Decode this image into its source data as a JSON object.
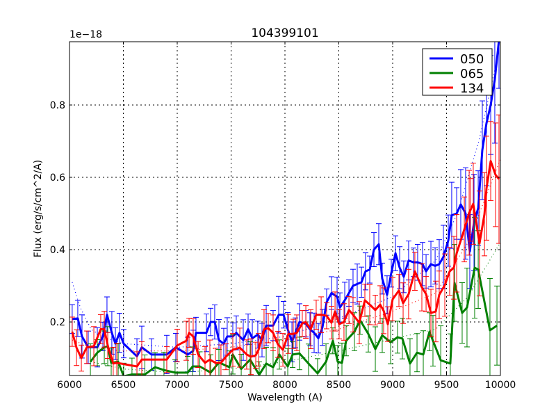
{
  "chart_data": {
    "type": "line",
    "title": "104399101",
    "xlabel": "Wavelength (A)",
    "ylabel": "Flux (erg/s/cm^2/A)",
    "y_offset_text": "1e−18",
    "xlim": [
      6000,
      10000
    ],
    "ylim": [
      0.052,
      0.975
    ],
    "xticks": [
      6000,
      6500,
      7000,
      7500,
      8000,
      8500,
      9000,
      9500,
      10000
    ],
    "xtick_labels": [
      "6000",
      "6500",
      "7000",
      "7500",
      "8000",
      "8500",
      "9000",
      "9500",
      "10000"
    ],
    "yticks": [
      0.2,
      0.4,
      0.6,
      0.8
    ],
    "ytick_labels": [
      "0.2",
      "0.4",
      "0.6",
      "0.8"
    ],
    "grid": true,
    "legend_position": "top-right",
    "series": [
      {
        "name": "050",
        "color": "#0000ff",
        "x": [
          6025,
          6077,
          6116,
          6174,
          6258,
          6310,
          6348,
          6393,
          6426,
          6464,
          6503,
          6626,
          6671,
          6761,
          6903,
          6987,
          7097,
          7148,
          7174,
          7271,
          7310,
          7348,
          7387,
          7432,
          7464,
          7516,
          7548,
          7613,
          7658,
          7697,
          7748,
          7787,
          7826,
          7890,
          7942,
          7987,
          8026,
          8065,
          8097,
          8135,
          8194,
          8232,
          8271,
          8310,
          8348,
          8387,
          8432,
          8484,
          8510,
          8555,
          8594,
          8632,
          8671,
          8710,
          8748,
          8787,
          8826,
          8871,
          8903,
          8948,
          8987,
          9026,
          9065,
          9103,
          9148,
          9194,
          9232,
          9277,
          9310,
          9355,
          9394,
          9432,
          9471,
          9516,
          9548,
          9594,
          9632,
          9677,
          9716,
          9755,
          9794,
          9832,
          9871,
          9910,
          9948,
          9987
        ],
        "y": [
          0.208,
          0.21,
          0.16,
          0.13,
          0.13,
          0.16,
          0.22,
          0.17,
          0.14,
          0.17,
          0.14,
          0.105,
          0.13,
          0.11,
          0.11,
          0.13,
          0.11,
          0.12,
          0.17,
          0.17,
          0.2,
          0.2,
          0.15,
          0.14,
          0.16,
          0.16,
          0.17,
          0.15,
          0.18,
          0.155,
          0.165,
          0.15,
          0.19,
          0.19,
          0.22,
          0.22,
          0.18,
          0.145,
          0.17,
          0.2,
          0.195,
          0.18,
          0.17,
          0.155,
          0.185,
          0.255,
          0.28,
          0.27,
          0.24,
          0.26,
          0.28,
          0.3,
          0.305,
          0.31,
          0.34,
          0.345,
          0.4,
          0.415,
          0.32,
          0.275,
          0.335,
          0.39,
          0.35,
          0.325,
          0.37,
          0.365,
          0.365,
          0.36,
          0.34,
          0.36,
          0.355,
          0.36,
          0.38,
          0.425,
          0.495,
          0.5,
          0.525,
          0.5,
          0.395,
          0.475,
          0.515,
          0.675,
          0.75,
          0.8,
          0.87,
          0.98
        ],
        "yerr_by_x": [
          [
            6000,
            0.05
          ],
          [
            8500,
            0.045
          ],
          [
            9300,
            0.05
          ],
          [
            9600,
            0.09
          ],
          [
            10000,
            0.17
          ]
        ],
        "trend": {
          "x": [
            6025,
            6100,
            6200,
            6300,
            6500,
            7000,
            7500,
            8000,
            8500,
            9000,
            9400,
            9600,
            9800,
            9950
          ],
          "y": [
            0.31,
            0.24,
            0.18,
            0.16,
            0.14,
            0.13,
            0.14,
            0.16,
            0.21,
            0.27,
            0.37,
            0.5,
            0.7,
            0.9
          ]
        }
      },
      {
        "name": "065",
        "color": "#008000",
        "x": [
          6194,
          6258,
          6323,
          6355,
          6387,
          6452,
          6503,
          6580,
          6700,
          6794,
          6877,
          6980,
          7097,
          7143,
          7210,
          7310,
          7387,
          7484,
          7516,
          7594,
          7677,
          7761,
          7826,
          7890,
          7948,
          8026,
          8071,
          8135,
          8219,
          8303,
          8381,
          8445,
          8490,
          8529,
          8568,
          8645,
          8697,
          8774,
          8839,
          8903,
          8981,
          9045,
          9090,
          9161,
          9226,
          9284,
          9342,
          9374,
          9446,
          9535,
          9574,
          9645,
          9690,
          9761,
          9794,
          9903,
          9968
        ],
        "y": [
          0.09,
          0.115,
          0.13,
          0.133,
          0.087,
          0.09,
          0.05,
          0.055,
          0.055,
          0.075,
          0.067,
          0.06,
          0.06,
          0.077,
          0.077,
          0.06,
          0.088,
          0.075,
          0.11,
          0.07,
          0.096,
          0.054,
          0.085,
          0.075,
          0.11,
          0.077,
          0.11,
          0.113,
          0.085,
          0.058,
          0.09,
          0.148,
          0.09,
          0.087,
          0.148,
          0.173,
          0.205,
          0.167,
          0.125,
          0.163,
          0.144,
          0.158,
          0.154,
          0.085,
          0.115,
          0.11,
          0.173,
          0.148,
          0.094,
          0.085,
          0.308,
          0.225,
          0.24,
          0.35,
          0.345,
          0.177,
          0.19
        ],
        "yerr_by_x": [
          [
            6000,
            0.045
          ],
          [
            8500,
            0.045
          ],
          [
            9300,
            0.06
          ],
          [
            9600,
            0.1
          ],
          [
            10000,
            0.14
          ]
        ],
        "trend": {
          "x": [
            6200,
            6500,
            7000,
            7500,
            8000,
            8500,
            8800,
            9100,
            9400,
            9700,
            10000
          ],
          "y": [
            0.09,
            0.07,
            0.06,
            0.07,
            0.09,
            0.12,
            0.14,
            0.16,
            0.18,
            0.27,
            0.42
          ]
        }
      },
      {
        "name": "134",
        "color": "#ff0000",
        "x": [
          6025,
          6065,
          6110,
          6161,
          6226,
          6290,
          6323,
          6355,
          6406,
          6439,
          6626,
          6671,
          6903,
          7000,
          7084,
          7110,
          7148,
          7194,
          7258,
          7303,
          7355,
          7406,
          7452,
          7516,
          7581,
          7645,
          7684,
          7729,
          7755,
          7806,
          7845,
          7890,
          7935,
          7981,
          8032,
          8077,
          8110,
          8161,
          8194,
          8239,
          8290,
          8336,
          8387,
          8432,
          8465,
          8503,
          8548,
          8594,
          8632,
          8690,
          8742,
          8787,
          8839,
          8884,
          8916,
          8955,
          9000,
          9058,
          9097,
          9148,
          9206,
          9271,
          9310,
          9355,
          9400,
          9432,
          9484,
          9529,
          9568,
          9594,
          9665,
          9710,
          9723,
          9748,
          9806,
          9852,
          9871,
          9910,
          9955,
          9987
        ],
        "y": [
          0.173,
          0.129,
          0.1,
          0.13,
          0.133,
          0.18,
          0.18,
          0.135,
          0.085,
          0.087,
          0.077,
          0.096,
          0.096,
          0.135,
          0.148,
          0.17,
          0.16,
          0.11,
          0.087,
          0.096,
          0.087,
          0.087,
          0.104,
          0.123,
          0.129,
          0.11,
          0.104,
          0.108,
          0.123,
          0.18,
          0.183,
          0.17,
          0.138,
          0.123,
          0.167,
          0.167,
          0.17,
          0.196,
          0.2,
          0.18,
          0.22,
          0.22,
          0.217,
          0.198,
          0.229,
          0.194,
          0.2,
          0.233,
          0.22,
          0.198,
          0.26,
          0.248,
          0.233,
          0.248,
          0.231,
          0.194,
          0.263,
          0.287,
          0.252,
          0.277,
          0.34,
          0.296,
          0.277,
          0.225,
          0.229,
          0.275,
          0.302,
          0.34,
          0.35,
          0.39,
          0.456,
          0.502,
          0.51,
          0.527,
          0.417,
          0.498,
          0.57,
          0.645,
          0.607,
          0.595
        ],
        "yerr_by_x": [
          [
            6000,
            0.045
          ],
          [
            8500,
            0.045
          ],
          [
            9300,
            0.06
          ],
          [
            9600,
            0.09
          ],
          [
            10000,
            0.15
          ]
        ],
        "trend": {
          "x": [
            6025,
            6200,
            6500,
            7000,
            7500,
            8000,
            8500,
            9000,
            9400,
            9700,
            10000
          ],
          "y": [
            0.15,
            0.13,
            0.12,
            0.12,
            0.13,
            0.15,
            0.18,
            0.23,
            0.28,
            0.42,
            0.65
          ]
        }
      }
    ]
  }
}
